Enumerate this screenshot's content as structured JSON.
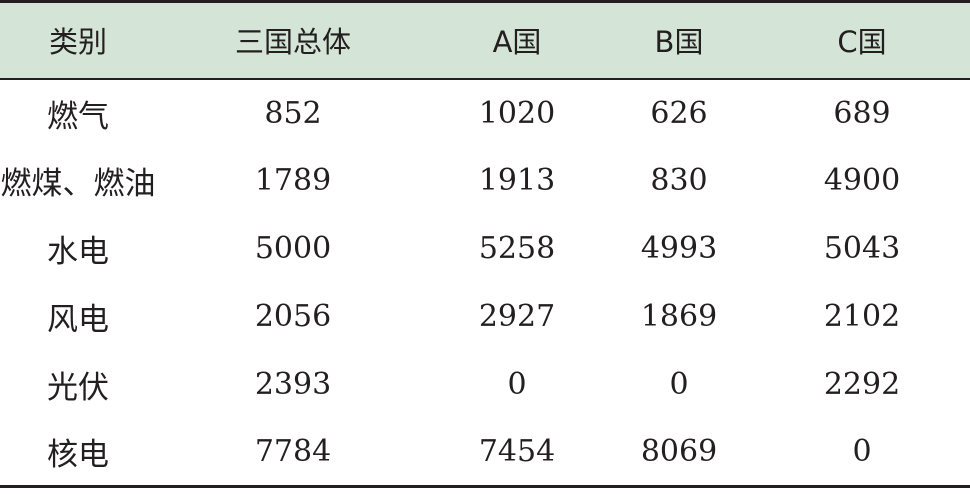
{
  "chart_data": {
    "type": "table",
    "columns": [
      "类别",
      "三国总体",
      "A国",
      "B国",
      "C国"
    ],
    "rows": [
      [
        "燃气",
        "852",
        "1020",
        "626",
        "689"
      ],
      [
        "燃煤、燃油",
        "1789",
        "1913",
        "830",
        "4900"
      ],
      [
        "水电",
        "5000",
        "5258",
        "4993",
        "5043"
      ],
      [
        "风电",
        "2056",
        "2927",
        "1869",
        "2102"
      ],
      [
        "光伏",
        "2393",
        "0",
        "0",
        "2292"
      ],
      [
        "核电",
        "7784",
        "7454",
        "8069",
        "0"
      ]
    ],
    "header_fill": "#d4e4d6",
    "rule_color": "#231f20"
  }
}
